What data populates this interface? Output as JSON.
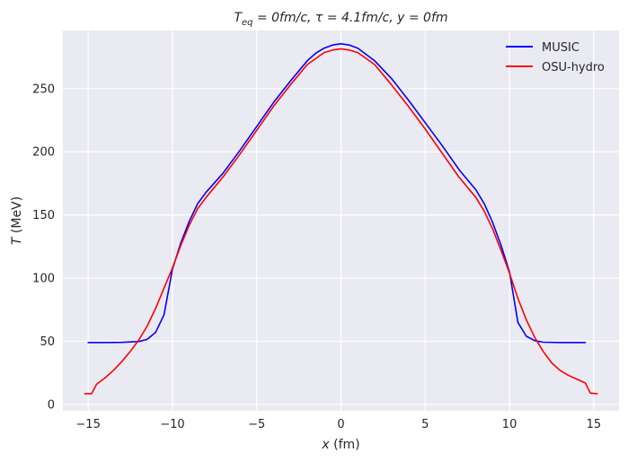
{
  "chart_data": {
    "type": "line",
    "title": {
      "prefix_math": "T",
      "prefix_sub": "eq",
      "rest": " = 0fm/c, τ = 4.1fm/c, y = 0fm"
    },
    "xlabel": {
      "var": "x",
      "unit": " (fm)"
    },
    "ylabel": {
      "var": "T",
      "unit": " (MeV)"
    },
    "xlim": [
      -16.5,
      16.5
    ],
    "ylim": [
      -5,
      296
    ],
    "xticks": [
      -15,
      -10,
      -5,
      0,
      5,
      10,
      15
    ],
    "xtick_labels": [
      "−15",
      "−10",
      "−5",
      "0",
      "5",
      "10",
      "15"
    ],
    "yticks": [
      0,
      50,
      100,
      150,
      200,
      250
    ],
    "ytick_labels": [
      "0",
      "50",
      "100",
      "150",
      "200",
      "250"
    ],
    "grid": true,
    "legend_position": "top-right",
    "series": [
      {
        "name": "MUSIC",
        "color": "#0000ff",
        "x": [
          -15,
          -14,
          -13,
          -12,
          -11.5,
          -11,
          -10.5,
          -10,
          -9.5,
          -9,
          -8.5,
          -8,
          -7,
          -6,
          -5,
          -4,
          -3,
          -2,
          -1.5,
          -1,
          -0.5,
          0,
          0.5,
          1,
          1.5,
          2,
          3,
          4,
          5,
          6,
          7,
          8,
          8.5,
          9,
          9.5,
          10,
          10.5,
          11,
          11.5,
          12,
          13,
          14,
          14.5
        ],
        "y": [
          49,
          49,
          49.2,
          49.8,
          51.5,
          57,
          71,
          107,
          128,
          145,
          159,
          168,
          183,
          201,
          220,
          239,
          256,
          272,
          278,
          282,
          284.5,
          285.5,
          284.5,
          282,
          277,
          272,
          258,
          241,
          223,
          205,
          186,
          170,
          159,
          144,
          126,
          105,
          65,
          54,
          50.5,
          49.3,
          49,
          49,
          49
        ]
      },
      {
        "name": "OSU-hydro",
        "color": "#ff0000",
        "x": [
          -15.2,
          -14.8,
          -14.5,
          -14,
          -13.5,
          -13,
          -12.5,
          -12,
          -11.5,
          -11,
          -10.5,
          -10,
          -9.5,
          -9,
          -8.5,
          -8,
          -7,
          -6,
          -5,
          -4,
          -3,
          -2,
          -1,
          -0.5,
          0,
          0.5,
          1,
          2,
          3,
          4,
          5,
          6,
          7,
          8,
          8.5,
          9,
          9.5,
          10,
          10.5,
          11,
          11.5,
          12,
          12.5,
          13,
          13.5,
          14,
          14.5,
          14.8,
          15.2
        ],
        "y": [
          8.5,
          8.5,
          16,
          21,
          27,
          34,
          42,
          51,
          62,
          76,
          92,
          108,
          126,
          142,
          155,
          164,
          180,
          198,
          217,
          236,
          253,
          269,
          278.5,
          280.5,
          281.5,
          280.5,
          278.5,
          269,
          253,
          236,
          218,
          199,
          180,
          164,
          153,
          139,
          122,
          104,
          84,
          67,
          53,
          42,
          33,
          27,
          23,
          20,
          17,
          9,
          8.5
        ]
      }
    ]
  }
}
